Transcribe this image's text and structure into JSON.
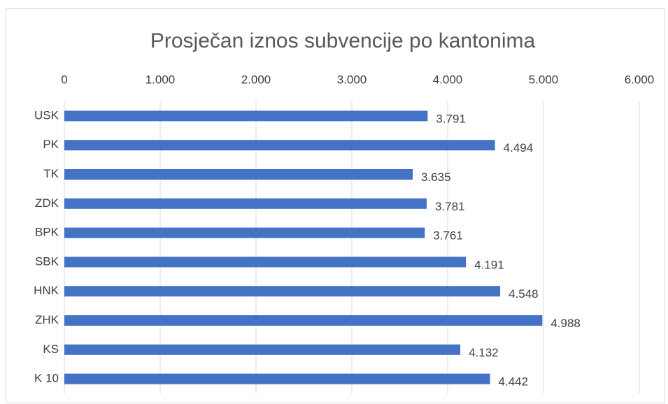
{
  "chart_data": {
    "type": "bar",
    "orientation": "horizontal",
    "title": "Prosječan iznos subvencije po kantonima",
    "categories": [
      "USK",
      "PK",
      "TK",
      "ZDK",
      "BPK",
      "SBK",
      "HNK",
      "ZHK",
      "KS",
      "K 10"
    ],
    "values": [
      3791,
      4494,
      3635,
      3781,
      3761,
      4191,
      4548,
      4988,
      4132,
      4442
    ],
    "value_labels": [
      "3.791",
      "4.494",
      "3.635",
      "3.781",
      "3.761",
      "4.191",
      "4.548",
      "4.988",
      "4.132",
      "4.442"
    ],
    "color": "#4472c4",
    "xlim": [
      0,
      6000
    ],
    "xticks": [
      0,
      {
        "value": 1000,
        "label": "1.000"
      },
      {
        "value": 2000,
        "label": "2.000"
      },
      {
        "value": 3000,
        "label": "3.000"
      },
      {
        "value": 4000,
        "label": "4.000"
      },
      {
        "value": 5000,
        "label": "5.000"
      },
      {
        "value": 6000,
        "label": "6.000"
      }
    ],
    "grid": true
  }
}
